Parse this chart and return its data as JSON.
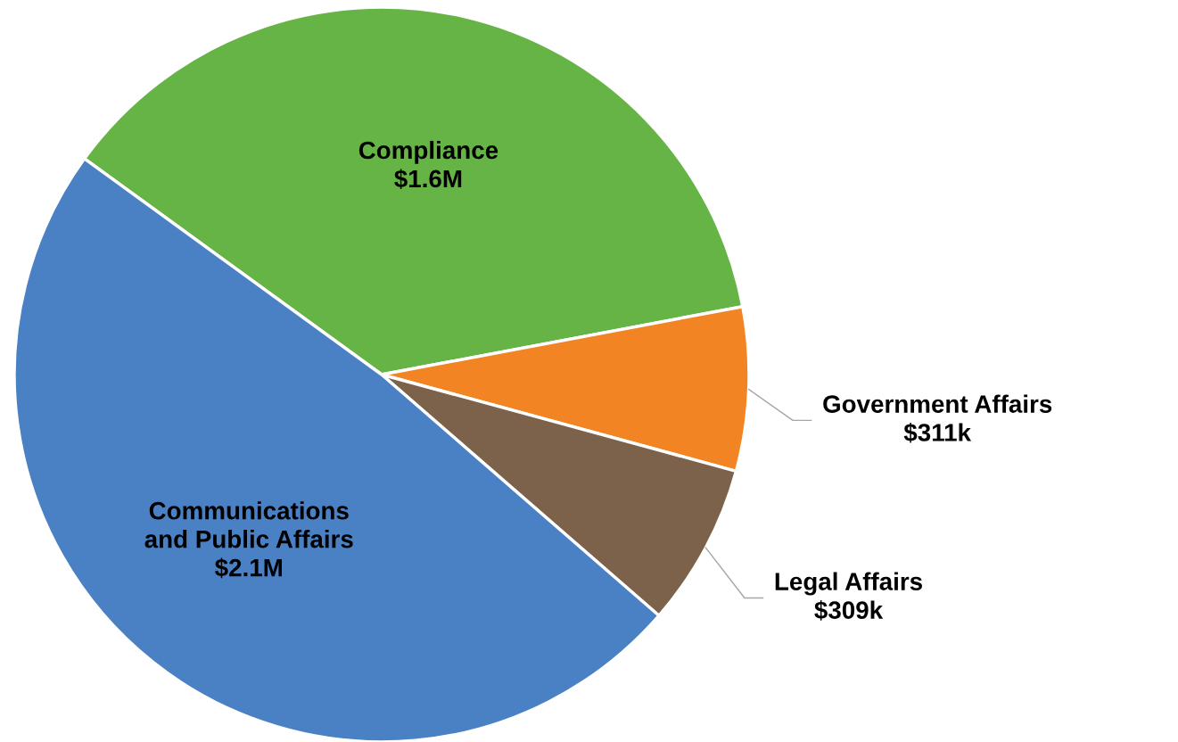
{
  "chart_data": {
    "type": "pie",
    "categories": [
      "Compliance",
      "Government Affairs",
      "Legal Affairs",
      "Communications\nand Public Affairs"
    ],
    "values": [
      1600000,
      311000,
      309000,
      2100000
    ],
    "value_labels": [
      "$1.6M",
      "$311k",
      "$309k",
      "$2.1M"
    ],
    "colors": [
      "#66b446",
      "#f38424",
      "#7d624b",
      "#4a81c4"
    ],
    "legend": false
  }
}
